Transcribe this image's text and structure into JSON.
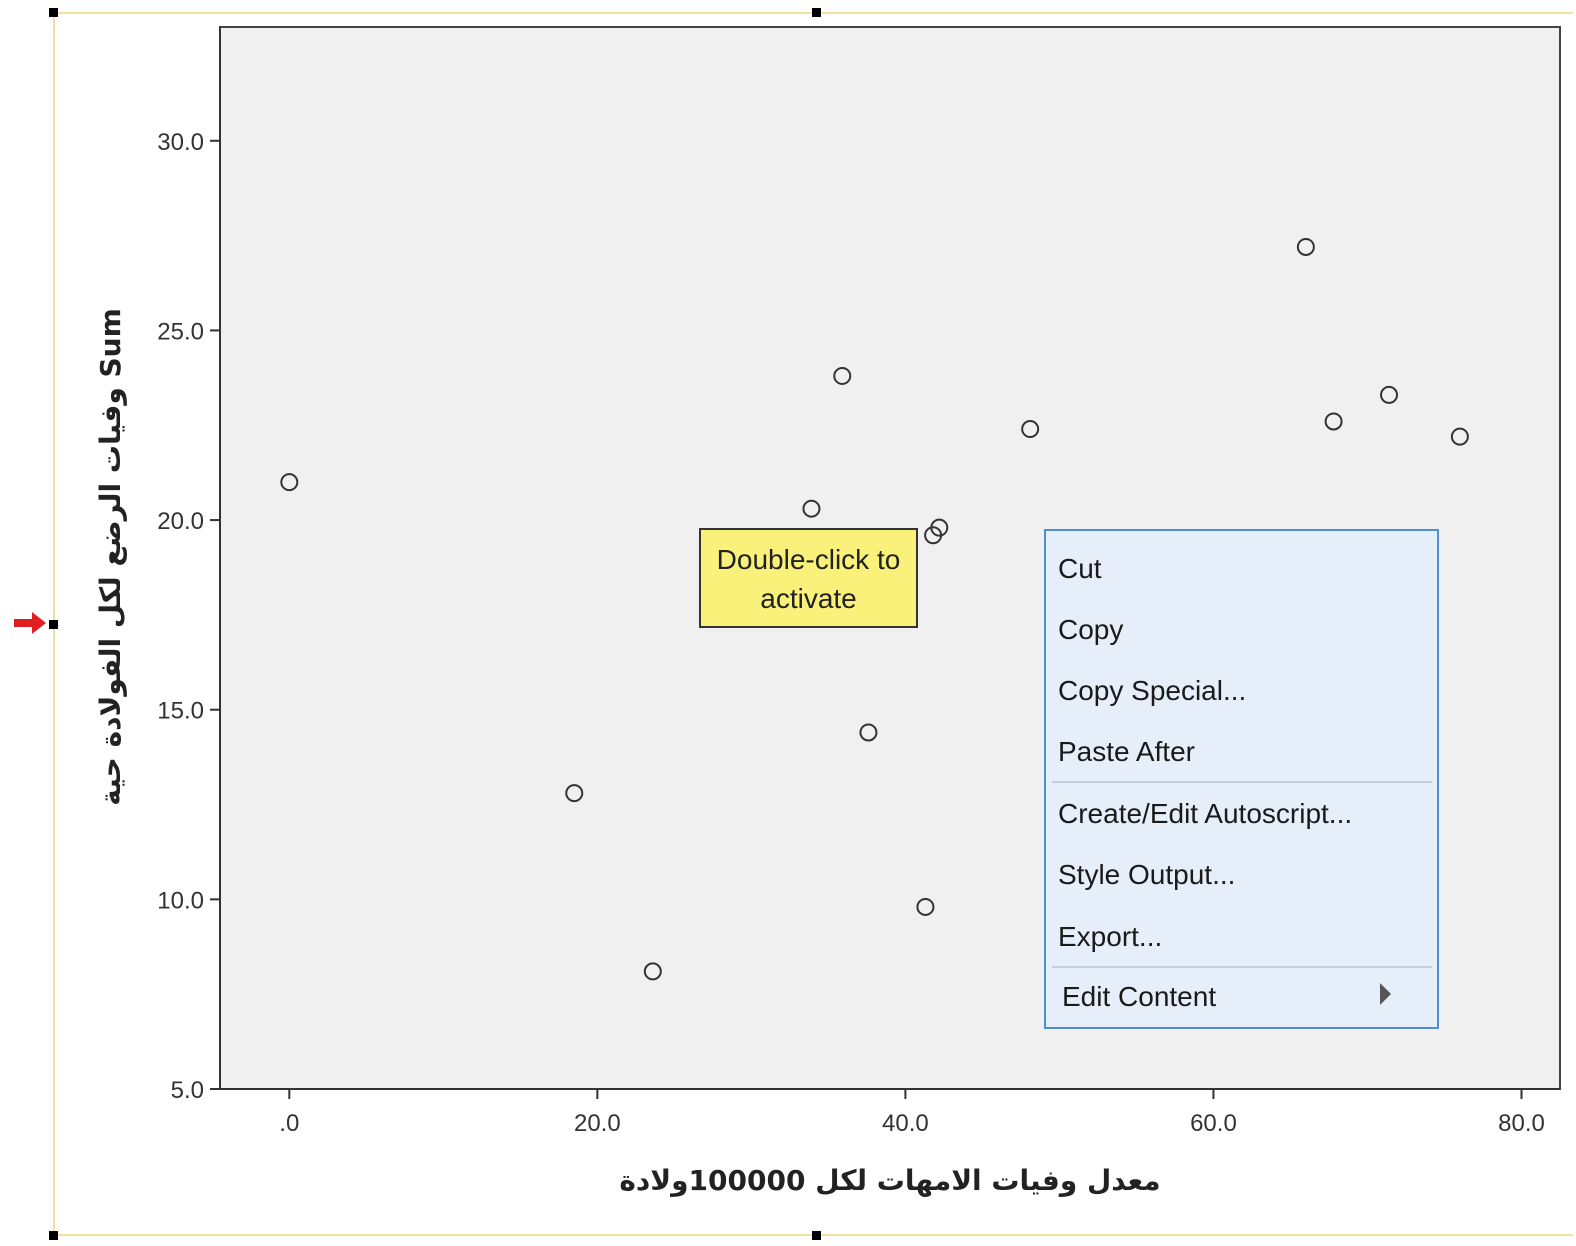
{
  "chart_data": {
    "type": "scatter",
    "xlabel": "معدل وفيات الامهات لكل 100000ولادة",
    "ylabel": "Sum وفيات الرضع لكل الفولادة حية",
    "xlim": [
      -4.5,
      82.5
    ],
    "ylim": [
      5,
      33
    ],
    "x_ticks": [
      0,
      20,
      40,
      60,
      80
    ],
    "x_tick_labels": [
      ".0",
      "20.0",
      "40.0",
      "60.0",
      "80.0"
    ],
    "y_ticks": [
      5,
      10,
      15,
      20,
      25,
      30
    ],
    "y_tick_labels": [
      "5.0",
      "10.0",
      "15.0",
      "20.0",
      "25.0",
      "30.0"
    ],
    "grid": false,
    "background_color": "#f0f0f0",
    "marker": "open-circle",
    "points": [
      {
        "x": 0.0,
        "y": 21.0
      },
      {
        "x": 18.5,
        "y": 12.8
      },
      {
        "x": 23.6,
        "y": 8.1
      },
      {
        "x": 33.9,
        "y": 20.3
      },
      {
        "x": 35.9,
        "y": 23.8
      },
      {
        "x": 37.6,
        "y": 14.4
      },
      {
        "x": 41.3,
        "y": 9.8
      },
      {
        "x": 41.8,
        "y": 19.6
      },
      {
        "x": 42.2,
        "y": 19.8
      },
      {
        "x": 48.1,
        "y": 22.4
      },
      {
        "x": 66.0,
        "y": 27.2
      },
      {
        "x": 67.8,
        "y": 22.6
      },
      {
        "x": 71.4,
        "y": 23.3
      },
      {
        "x": 76.0,
        "y": 22.2
      }
    ]
  },
  "tooltip": {
    "line1": "Double-click to",
    "line2": "activate"
  },
  "context_menu": {
    "cut": "Cut",
    "copy": "Copy",
    "copy_special": "Copy Special...",
    "paste_after": "Paste After",
    "create_edit_autoscript": "Create/Edit Autoscript...",
    "style_output": "Style Output...",
    "export": "Export...",
    "edit_content": "Edit Content"
  },
  "colors": {
    "selection_frame": "#f3dfa0",
    "tooltip_bg": "#f9f17a",
    "menu_bg": "#e5eef9",
    "menu_border": "#4f8fd0",
    "indicator_arrow": "#e02020"
  },
  "icons": {
    "submenu": "triangle-right-icon",
    "indicator": "red-arrow-icon"
  }
}
